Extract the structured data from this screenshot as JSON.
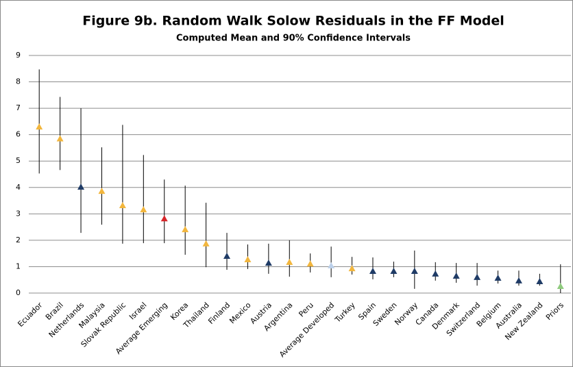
{
  "chart_data": {
    "type": "errorbar",
    "title": "Figure 9b. Random Walk Solow Residuals in the FF Model",
    "subtitle": "Computed Mean and 90% Confidence Intervals",
    "categories": [
      "Ecuador",
      "Brazil",
      "Netherlands",
      "Malaysia",
      "Slovak Republic",
      "Israel",
      "Average Emerging",
      "Korea",
      "Thailand",
      "Finland",
      "Mexico",
      "Austria",
      "Argentina",
      "Peru",
      "Average Developed",
      "Turkey",
      "Spain",
      "Sweden",
      "Norway",
      "Canada",
      "Denmark",
      "Switzerland",
      "Belgium",
      "Australia",
      "New Zealand",
      "Priors"
    ],
    "values": [
      6.3,
      5.85,
      4.02,
      3.86,
      3.32,
      3.16,
      2.82,
      2.41,
      1.87,
      1.4,
      1.27,
      1.14,
      1.17,
      1.11,
      1.04,
      0.93,
      0.83,
      0.83,
      0.83,
      0.73,
      0.65,
      0.6,
      0.57,
      0.47,
      0.44,
      0.26
    ],
    "lows": [
      4.53,
      4.66,
      2.28,
      2.59,
      1.87,
      1.89,
      1.89,
      1.45,
      0.98,
      0.88,
      0.91,
      0.73,
      0.62,
      0.78,
      0.6,
      0.7,
      0.52,
      0.6,
      0.16,
      0.47,
      0.39,
      0.28,
      0.36,
      0.28,
      0.28,
      0
    ],
    "highs": [
      8.47,
      7.43,
      7.0,
      5.52,
      6.37,
      5.23,
      4.3,
      4.07,
      3.42,
      2.28,
      1.84,
      1.87,
      2.0,
      1.5,
      1.76,
      1.37,
      1.35,
      1.19,
      1.61,
      1.17,
      1.14,
      1.14,
      0.85,
      0.85,
      0.73,
      1.09
    ],
    "colors": [
      "#f2b63d",
      "#f2b63d",
      "#1f3b66",
      "#f2b63d",
      "#f2b63d",
      "#f2b63d",
      "#d7262b",
      "#f2b63d",
      "#f2b63d",
      "#1f3b66",
      "#f2b63d",
      "#1f3b66",
      "#f2b63d",
      "#f2b63d",
      "#bcd0ea",
      "#f2b63d",
      "#1f3b66",
      "#1f3b66",
      "#1f3b66",
      "#1f3b66",
      "#1f3b66",
      "#1f3b66",
      "#1f3b66",
      "#1f3b66",
      "#1f3b66",
      "#8fcb7e"
    ],
    "ylim": [
      0,
      9
    ],
    "yticks": [
      0,
      1,
      2,
      3,
      4,
      5,
      6,
      7,
      8,
      9
    ],
    "grid": true
  }
}
